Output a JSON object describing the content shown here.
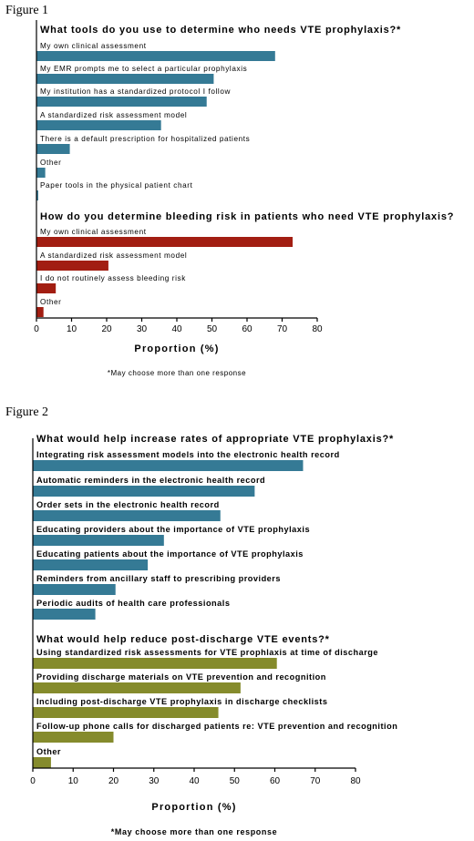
{
  "chart_data": [
    {
      "type": "bar",
      "orientation": "horizontal",
      "figure_label": "Figure 1",
      "xlabel": "Proportion (%)",
      "xlim": [
        0,
        80
      ],
      "xticks": [
        0,
        10,
        20,
        30,
        40,
        50,
        60,
        70,
        80
      ],
      "grid": false,
      "footnote": "*May choose more than one response",
      "groups": [
        {
          "title": "What tools do you use to determine who needs VTE prophylaxis?*",
          "color": "#357a95",
          "categories": [
            "My own clinical assessment",
            "My  EMR prompts me to select a particular prophylaxis",
            "My institution has a standardized protocol I follow",
            "A standardized risk assessment model",
            "There is a default prescription for hospitalized patients",
            "Other",
            "Paper tools in the physical patient chart"
          ],
          "values": [
            68,
            50.5,
            48.5,
            35.5,
            9.5,
            2.5,
            0.5
          ]
        },
        {
          "title": "How do you determine bleeding risk in patients who need VTE prophylaxis?",
          "color": "#a21e12",
          "categories": [
            "My own clinical assessment",
            "A standardized risk assessment model",
            "I do not routinely assess bleeding risk",
            "Other"
          ],
          "values": [
            73,
            20.5,
            5.5,
            2
          ]
        }
      ]
    },
    {
      "type": "bar",
      "orientation": "horizontal",
      "figure_label": "Figure 2",
      "xlabel": "Proportion (%)",
      "xlim": [
        0,
        80
      ],
      "xticks": [
        0,
        10,
        20,
        30,
        40,
        50,
        60,
        70,
        80
      ],
      "grid": false,
      "footnote": "*May choose more than one response",
      "groups": [
        {
          "title": "What would help increase rates of appropriate VTE prophylaxis?*",
          "color": "#357a95",
          "categories": [
            "Integrating risk assessment models into the electronic health record",
            "Automatic reminders in the electronic health record",
            "Order sets in the electronic health record",
            "Educating providers about the importance of VTE prophylaxis",
            "Educating patients about the importance of VTE prophylaxis",
            "Reminders from ancillary staff to prescribing providers",
            "Periodic audits of health care professionals"
          ],
          "values": [
            67,
            55,
            46.5,
            32.5,
            28.5,
            20.5,
            15.5
          ]
        },
        {
          "title": "What would help reduce post-discharge VTE events?*",
          "color": "#858b2c",
          "categories": [
            "Using standardized risk assessments for VTE prophlaxis at time of discharge",
            "Providing discharge materials on VTE prevention and recognition",
            "Including post-discharge VTE prophylaxis in discharge checklists",
            "Follow-up phone calls for discharged patients re: VTE prevention and recognition",
            "Other"
          ],
          "values": [
            60.5,
            51.5,
            46,
            20,
            4.5
          ]
        }
      ]
    }
  ]
}
